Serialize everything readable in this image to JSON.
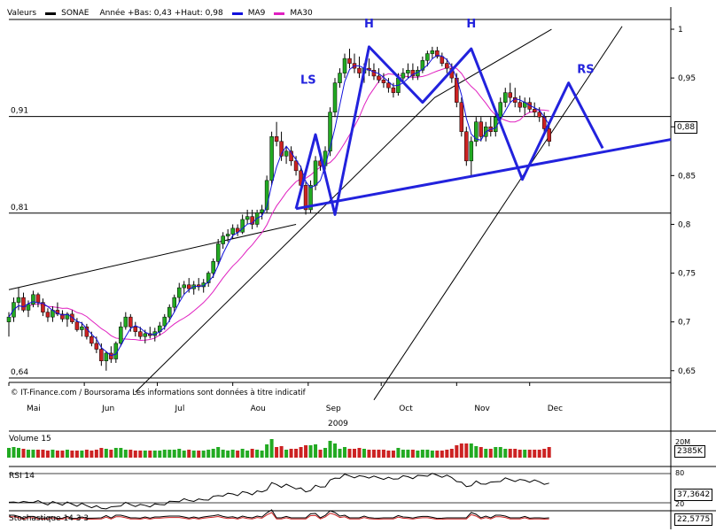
{
  "legend": {
    "values_label": "Valeurs",
    "ticker": "SONAE",
    "year_range": "Année +Bas: 0,43 +Haut: 0,98",
    "ma9_label": "MA9",
    "ma30_label": "MA30"
  },
  "copyright": "© IT-Finance.com / Boursorama Les informations sont données à titre indicatif",
  "year_label": "2009",
  "colors": {
    "up": "#22aa22",
    "down": "#cc2222",
    "ma9": "#1111dd",
    "ma30": "#e020c0",
    "pattern": "#2222dd"
  },
  "price_tags": {
    "last": "0,88",
    "volume": "2385K",
    "rsi": "37,3642",
    "stoch": "22,5775"
  },
  "panels": {
    "volume": {
      "label": "Volume 15",
      "scale": "20M"
    },
    "rsi": {
      "label": "RSI 14",
      "levels": [
        "80",
        "20"
      ]
    },
    "stoch": {
      "label": "Stochastique 14 3 3"
    }
  },
  "chart_data": {
    "type": "candlestick",
    "title": "",
    "x_ticks": [
      "Mai",
      "Jun",
      "Jul",
      "Aou",
      "Sep",
      "Oct",
      "Nov",
      "Dec"
    ],
    "y_ticks": [
      "1",
      "0,95",
      "0,9",
      "0,85",
      "0,8",
      "0,75",
      "0,7",
      "0,65"
    ],
    "y_tick_values": [
      1,
      0.95,
      0.9,
      0.85,
      0.8,
      0.75,
      0.7,
      0.65
    ],
    "ylim": [
      0.638,
      1.01
    ],
    "horizontal_levels": [
      {
        "label": "0,91",
        "value": 0.9105
      },
      {
        "label": "0,81",
        "value": 0.8115
      },
      {
        "label": "0,64",
        "value": 0.6425
      }
    ],
    "pattern_labels": [
      {
        "text": "LS",
        "day": 123,
        "value": 0.944
      },
      {
        "text": "H",
        "day": 148,
        "value": 1.002
      },
      {
        "text": "H",
        "day": 190,
        "value": 1.002
      },
      {
        "text": "RS",
        "day": 237,
        "value": 0.955
      }
    ],
    "pattern_points": [
      [
        118,
        0.816
      ],
      [
        126,
        0.892
      ],
      [
        134,
        0.81
      ],
      [
        148,
        0.982
      ],
      [
        170,
        0.925
      ],
      [
        190,
        0.98
      ],
      [
        211,
        0.846
      ],
      [
        230,
        0.945
      ],
      [
        244,
        0.878
      ]
    ],
    "neckline": [
      [
        118,
        0.816
      ],
      [
        272,
        0.887
      ]
    ],
    "trendlines": [
      [
        [
          0,
          0.733
        ],
        [
          118,
          0.8
        ]
      ],
      [
        [
          52,
          0.628
        ],
        [
          175,
          0.93
        ],
        [
          223,
          1.0
        ]
      ],
      [
        [
          150,
          0.62
        ],
        [
          252,
          1.003
        ]
      ]
    ],
    "series": [
      {
        "name": "SONAE",
        "values": [
          [
            0,
            0.7,
            0.71,
            0.685,
            0.705
          ],
          [
            2,
            0.705,
            0.725,
            0.7,
            0.72
          ],
          [
            4,
            0.72,
            0.735,
            0.712,
            0.725
          ],
          [
            6,
            0.725,
            0.73,
            0.71,
            0.712
          ],
          [
            8,
            0.712,
            0.722,
            0.705,
            0.718
          ],
          [
            10,
            0.718,
            0.732,
            0.715,
            0.728
          ],
          [
            12,
            0.728,
            0.73,
            0.715,
            0.72
          ],
          [
            14,
            0.72,
            0.724,
            0.706,
            0.71
          ],
          [
            16,
            0.71,
            0.714,
            0.7,
            0.705
          ],
          [
            18,
            0.705,
            0.716,
            0.7,
            0.712
          ],
          [
            20,
            0.712,
            0.72,
            0.706,
            0.708
          ],
          [
            22,
            0.708,
            0.712,
            0.7,
            0.703
          ],
          [
            24,
            0.703,
            0.71,
            0.695,
            0.708
          ],
          [
            26,
            0.708,
            0.712,
            0.698,
            0.7
          ],
          [
            28,
            0.7,
            0.704,
            0.69,
            0.692
          ],
          [
            30,
            0.692,
            0.7,
            0.685,
            0.695
          ],
          [
            32,
            0.695,
            0.698,
            0.682,
            0.685
          ],
          [
            34,
            0.685,
            0.69,
            0.675,
            0.678
          ],
          [
            36,
            0.678,
            0.685,
            0.668,
            0.672
          ],
          [
            38,
            0.672,
            0.678,
            0.655,
            0.66
          ],
          [
            40,
            0.66,
            0.67,
            0.65,
            0.668
          ],
          [
            42,
            0.668,
            0.675,
            0.658,
            0.662
          ],
          [
            44,
            0.662,
            0.68,
            0.658,
            0.678
          ],
          [
            46,
            0.678,
            0.7,
            0.675,
            0.695
          ],
          [
            48,
            0.695,
            0.71,
            0.692,
            0.705
          ],
          [
            50,
            0.705,
            0.708,
            0.69,
            0.695
          ],
          [
            52,
            0.695,
            0.7,
            0.685,
            0.69
          ],
          [
            54,
            0.69,
            0.695,
            0.682,
            0.685
          ],
          [
            56,
            0.685,
            0.692,
            0.678,
            0.688
          ],
          [
            58,
            0.688,
            0.695,
            0.683,
            0.686
          ],
          [
            60,
            0.686,
            0.694,
            0.68,
            0.69
          ],
          [
            62,
            0.69,
            0.7,
            0.686,
            0.696
          ],
          [
            64,
            0.696,
            0.708,
            0.692,
            0.705
          ],
          [
            66,
            0.705,
            0.718,
            0.7,
            0.715
          ],
          [
            68,
            0.715,
            0.728,
            0.71,
            0.725
          ],
          [
            70,
            0.725,
            0.74,
            0.72,
            0.735
          ],
          [
            72,
            0.735,
            0.742,
            0.728,
            0.738
          ],
          [
            74,
            0.738,
            0.745,
            0.73,
            0.734
          ],
          [
            76,
            0.734,
            0.742,
            0.728,
            0.738
          ],
          [
            78,
            0.738,
            0.745,
            0.732,
            0.736
          ],
          [
            80,
            0.736,
            0.744,
            0.73,
            0.74
          ],
          [
            82,
            0.74,
            0.752,
            0.736,
            0.75
          ],
          [
            84,
            0.75,
            0.765,
            0.745,
            0.762
          ],
          [
            86,
            0.762,
            0.785,
            0.758,
            0.78
          ],
          [
            88,
            0.78,
            0.792,
            0.775,
            0.788
          ],
          [
            90,
            0.788,
            0.795,
            0.782,
            0.79
          ],
          [
            92,
            0.79,
            0.8,
            0.785,
            0.796
          ],
          [
            94,
            0.796,
            0.8,
            0.788,
            0.792
          ],
          [
            96,
            0.792,
            0.81,
            0.79,
            0.805
          ],
          [
            98,
            0.805,
            0.815,
            0.8,
            0.808
          ],
          [
            100,
            0.808,
            0.815,
            0.795,
            0.8
          ],
          [
            102,
            0.8,
            0.815,
            0.797,
            0.812
          ],
          [
            104,
            0.812,
            0.82,
            0.805,
            0.815
          ],
          [
            106,
            0.815,
            0.85,
            0.812,
            0.845
          ],
          [
            108,
            0.845,
            0.895,
            0.84,
            0.89
          ],
          [
            110,
            0.89,
            0.905,
            0.88,
            0.885
          ],
          [
            112,
            0.885,
            0.895,
            0.865,
            0.87
          ],
          [
            114,
            0.87,
            0.88,
            0.862,
            0.875
          ],
          [
            116,
            0.875,
            0.88,
            0.86,
            0.865
          ],
          [
            118,
            0.865,
            0.87,
            0.85,
            0.855
          ],
          [
            120,
            0.855,
            0.86,
            0.835,
            0.84
          ],
          [
            122,
            0.84,
            0.845,
            0.81,
            0.815
          ],
          [
            124,
            0.815,
            0.845,
            0.812,
            0.84
          ],
          [
            126,
            0.84,
            0.87,
            0.835,
            0.865
          ],
          [
            128,
            0.865,
            0.872,
            0.855,
            0.86
          ],
          [
            130,
            0.86,
            0.88,
            0.856,
            0.875
          ],
          [
            132,
            0.875,
            0.92,
            0.87,
            0.915
          ],
          [
            134,
            0.915,
            0.95,
            0.91,
            0.945
          ],
          [
            136,
            0.945,
            0.96,
            0.94,
            0.955
          ],
          [
            138,
            0.955,
            0.975,
            0.95,
            0.97
          ],
          [
            140,
            0.97,
            0.98,
            0.96,
            0.965
          ],
          [
            142,
            0.965,
            0.975,
            0.955,
            0.96
          ],
          [
            144,
            0.96,
            0.972,
            0.95,
            0.955
          ],
          [
            146,
            0.955,
            0.965,
            0.945,
            0.96
          ],
          [
            148,
            0.96,
            0.97,
            0.952,
            0.958
          ],
          [
            150,
            0.958,
            0.965,
            0.948,
            0.952
          ],
          [
            152,
            0.952,
            0.96,
            0.945,
            0.948
          ],
          [
            154,
            0.948,
            0.955,
            0.94,
            0.945
          ],
          [
            156,
            0.945,
            0.95,
            0.935,
            0.94
          ],
          [
            158,
            0.94,
            0.945,
            0.93,
            0.935
          ],
          [
            160,
            0.935,
            0.955,
            0.932,
            0.95
          ],
          [
            162,
            0.95,
            0.96,
            0.945,
            0.955
          ],
          [
            164,
            0.955,
            0.965,
            0.95,
            0.958
          ],
          [
            166,
            0.958,
            0.965,
            0.948,
            0.952
          ],
          [
            168,
            0.952,
            0.962,
            0.948,
            0.958
          ],
          [
            170,
            0.958,
            0.972,
            0.955,
            0.968
          ],
          [
            172,
            0.968,
            0.978,
            0.962,
            0.975
          ],
          [
            174,
            0.975,
            0.982,
            0.97,
            0.978
          ],
          [
            176,
            0.978,
            0.982,
            0.97,
            0.972
          ],
          [
            178,
            0.972,
            0.976,
            0.962,
            0.965
          ],
          [
            180,
            0.965,
            0.97,
            0.955,
            0.96
          ],
          [
            182,
            0.96,
            0.965,
            0.945,
            0.95
          ],
          [
            184,
            0.95,
            0.955,
            0.92,
            0.925
          ],
          [
            186,
            0.925,
            0.93,
            0.89,
            0.895
          ],
          [
            188,
            0.895,
            0.9,
            0.86,
            0.865
          ],
          [
            190,
            0.865,
            0.89,
            0.85,
            0.885
          ],
          [
            192,
            0.885,
            0.91,
            0.88,
            0.905
          ],
          [
            194,
            0.905,
            0.91,
            0.885,
            0.89
          ],
          [
            196,
            0.89,
            0.905,
            0.885,
            0.9
          ],
          [
            198,
            0.9,
            0.91,
            0.89,
            0.895
          ],
          [
            200,
            0.895,
            0.915,
            0.89,
            0.91
          ],
          [
            202,
            0.91,
            0.93,
            0.905,
            0.925
          ],
          [
            204,
            0.925,
            0.94,
            0.92,
            0.935
          ],
          [
            206,
            0.935,
            0.945,
            0.925,
            0.93
          ],
          [
            208,
            0.93,
            0.94,
            0.92,
            0.925
          ],
          [
            210,
            0.925,
            0.932,
            0.915,
            0.92
          ],
          [
            212,
            0.92,
            0.93,
            0.912,
            0.925
          ],
          [
            214,
            0.925,
            0.93,
            0.915,
            0.918
          ],
          [
            216,
            0.918,
            0.925,
            0.91,
            0.915
          ],
          [
            218,
            0.915,
            0.92,
            0.905,
            0.91
          ],
          [
            220,
            0.91,
            0.915,
            0.895,
            0.898
          ],
          [
            222,
            0.898,
            0.905,
            0.88,
            0.885
          ]
        ]
      }
    ]
  }
}
